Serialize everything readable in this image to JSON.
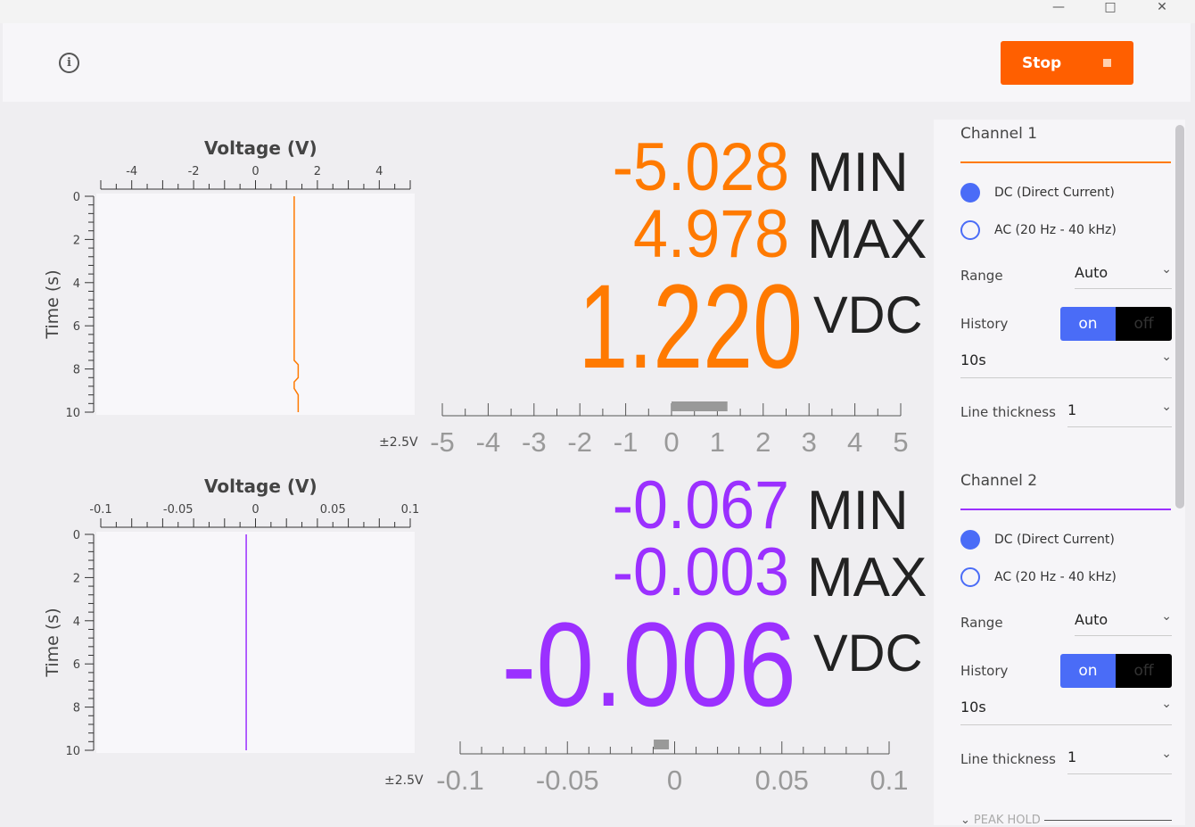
{
  "window": {
    "minimize_icon": "minimize-icon",
    "maximize_icon": "maximize-icon",
    "close_icon": "close-icon"
  },
  "toolbar": {
    "info_icon": "info-icon",
    "stop_label": "Stop",
    "stop_icon": "stop-square-icon",
    "stop_color": "#ff5f00"
  },
  "channels": [
    {
      "color": "#ff7a00",
      "plot": {
        "title": "Voltage (V)",
        "ylabel": "Time (s)",
        "xticks": [
          "-4",
          "-2",
          "0",
          "2",
          "4"
        ],
        "yticks": [
          "0",
          "2",
          "4",
          "6",
          "8",
          "10"
        ],
        "range_label": "±2.5V"
      },
      "readout": {
        "min": "-5.028",
        "min_label": "MIN",
        "max": "4.978",
        "max_label": "MAX",
        "value": "1.220",
        "value_label": "VDC"
      },
      "scale": {
        "labels": [
          "-5",
          "-4",
          "-3",
          "-2",
          "-1",
          "0",
          "1",
          "2",
          "3",
          "4",
          "5"
        ],
        "min": -5,
        "max": 5,
        "indicator": 1.22
      }
    },
    {
      "color": "#9b30ff",
      "plot": {
        "title": "Voltage (V)",
        "ylabel": "Time (s)",
        "xticks": [
          "-0.1",
          "-0.05",
          "0",
          "0.05",
          "0.1"
        ],
        "yticks": [
          "0",
          "2",
          "4",
          "6",
          "8",
          "10"
        ],
        "range_label": "±2.5V"
      },
      "readout": {
        "min": "-0.067",
        "min_label": "MIN",
        "max": "-0.003",
        "max_label": "MAX",
        "value": "-0.006",
        "value_label": "VDC"
      },
      "scale": {
        "labels": [
          "-0.1",
          "-0.05",
          "0",
          "0.05",
          "0.1"
        ],
        "min": -0.1,
        "max": 0.1,
        "indicator": -0.006
      }
    }
  ],
  "chart_data": [
    {
      "type": "line",
      "title": "Voltage (V)",
      "xlabel": "Voltage (V)",
      "ylabel": "Time (s)",
      "xlim": [
        -5,
        5
      ],
      "ylim": [
        0,
        10
      ],
      "y_inverted": true,
      "grid": false,
      "series": [
        {
          "x": [
            1.25,
            1.25,
            1.38,
            1.38,
            1.25,
            1.25,
            1.38,
            1.38
          ],
          "y": [
            0,
            7.6,
            7.8,
            8.4,
            8.6,
            8.9,
            9.2,
            10
          ]
        }
      ]
    },
    {
      "type": "line",
      "title": "Voltage (V)",
      "xlabel": "Voltage (V)",
      "ylabel": "Time (s)",
      "xlim": [
        -0.1,
        0.1
      ],
      "ylim": [
        0,
        10
      ],
      "y_inverted": true,
      "grid": false,
      "series": [
        {
          "x": [
            -0.006,
            -0.006
          ],
          "y": [
            0,
            10
          ]
        }
      ]
    }
  ],
  "panel": {
    "channels": [
      {
        "title": "Channel 1",
        "dc_label": "DC (Direct Current)",
        "ac_label": "AC (20 Hz - 40 kHz)",
        "coupling": "DC",
        "range_label": "Range",
        "range_value": "Auto",
        "history_label": "History",
        "history_on": "on",
        "history_off": "off",
        "history_state": "on",
        "history_value": "10s",
        "thickness_label": "Line thickness",
        "thickness_value": "1"
      },
      {
        "title": "Channel 2",
        "dc_label": "DC (Direct Current)",
        "ac_label": "AC (20 Hz - 40 kHz)",
        "coupling": "DC",
        "range_label": "Range",
        "range_value": "Auto",
        "history_label": "History",
        "history_on": "on",
        "history_off": "off",
        "history_state": "on",
        "history_value": "10s",
        "thickness_label": "Line thickness",
        "thickness_value": "1"
      }
    ],
    "peak_hold_label": "PEAK HOLD"
  }
}
